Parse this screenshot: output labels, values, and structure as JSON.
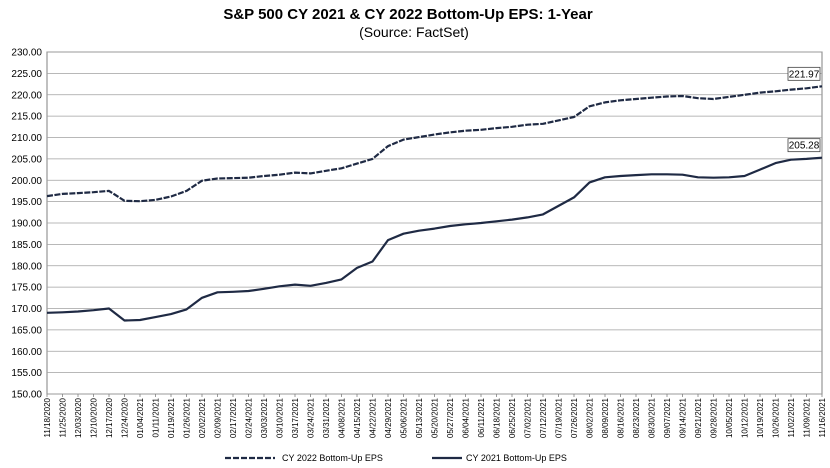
{
  "chart_data": {
    "type": "line",
    "title": "S&P 500 CY 2021 & CY 2022 Bottom-Up  EPS: 1-Year",
    "subtitle": "(Source: FactSet)",
    "xlabel": "",
    "ylabel": "",
    "ylim": [
      150,
      230
    ],
    "yticks": [
      "150.00",
      "155.00",
      "160.00",
      "165.00",
      "170.00",
      "175.00",
      "180.00",
      "185.00",
      "190.00",
      "195.00",
      "200.00",
      "205.00",
      "210.00",
      "215.00",
      "220.00",
      "225.00",
      "230.00"
    ],
    "xticks": [
      "11/18/2020",
      "11/25/2020",
      "12/03/2020",
      "12/10/2020",
      "12/17/2020",
      "12/24/2020",
      "01/04/2021",
      "01/11/2021",
      "01/19/2021",
      "01/26/2021",
      "02/02/2021",
      "02/09/2021",
      "02/17/2021",
      "02/24/2021",
      "03/03/2021",
      "03/10/2021",
      "03/17/2021",
      "03/24/2021",
      "03/31/2021",
      "04/08/2021",
      "04/15/2021",
      "04/22/2021",
      "04/29/2021",
      "05/06/2021",
      "05/13/2021",
      "05/20/2021",
      "05/27/2021",
      "06/04/2021",
      "06/11/2021",
      "06/18/2021",
      "06/25/2021",
      "07/02/2021",
      "07/12/2021",
      "07/19/2021",
      "07/26/2021",
      "08/02/2021",
      "08/09/2021",
      "08/16/2021",
      "08/23/2021",
      "08/30/2021",
      "09/07/2021",
      "09/14/2021",
      "09/21/2021",
      "09/28/2021",
      "10/05/2021",
      "10/12/2021",
      "10/19/2021",
      "10/26/2021",
      "11/02/2021",
      "11/09/2021",
      "11/16/2021"
    ],
    "legend_position": "bottom",
    "grid": "horizontal",
    "series": [
      {
        "name": "CY 2022 Bottom-Up EPS",
        "style": "dashed",
        "color": "#1f2a44",
        "values": [
          196.3,
          196.8,
          197.0,
          197.2,
          197.5,
          195.2,
          195.1,
          195.4,
          196.2,
          197.5,
          199.9,
          200.4,
          200.5,
          200.6,
          201.0,
          201.3,
          201.8,
          201.6,
          202.2,
          202.8,
          203.9,
          205.0,
          208.0,
          209.5,
          210.1,
          210.7,
          211.2,
          211.6,
          211.8,
          212.2,
          212.5,
          213.0,
          213.2,
          214.0,
          214.8,
          217.3,
          218.2,
          218.7,
          219.0,
          219.3,
          219.6,
          219.7,
          219.2,
          219.0,
          219.5,
          220.0,
          220.5,
          220.8,
          221.2,
          221.5,
          221.97
        ],
        "end_label": "221.97"
      },
      {
        "name": "CY 2021 Bottom-Up EPS",
        "style": "solid",
        "color": "#1f2a44",
        "values": [
          169.0,
          169.1,
          169.3,
          169.6,
          170.0,
          167.2,
          167.3,
          168.0,
          168.7,
          169.8,
          172.5,
          173.8,
          173.9,
          174.1,
          174.6,
          175.2,
          175.6,
          175.3,
          176.0,
          176.8,
          179.5,
          181.0,
          186.0,
          187.5,
          188.2,
          188.7,
          189.3,
          189.7,
          190.0,
          190.4,
          190.8,
          191.3,
          192.0,
          194.0,
          196.0,
          199.5,
          200.7,
          201.0,
          201.2,
          201.4,
          201.4,
          201.3,
          200.7,
          200.6,
          200.7,
          201.0,
          202.5,
          204.0,
          204.8,
          205.0,
          205.28
        ],
        "end_label": "205.28"
      }
    ]
  }
}
